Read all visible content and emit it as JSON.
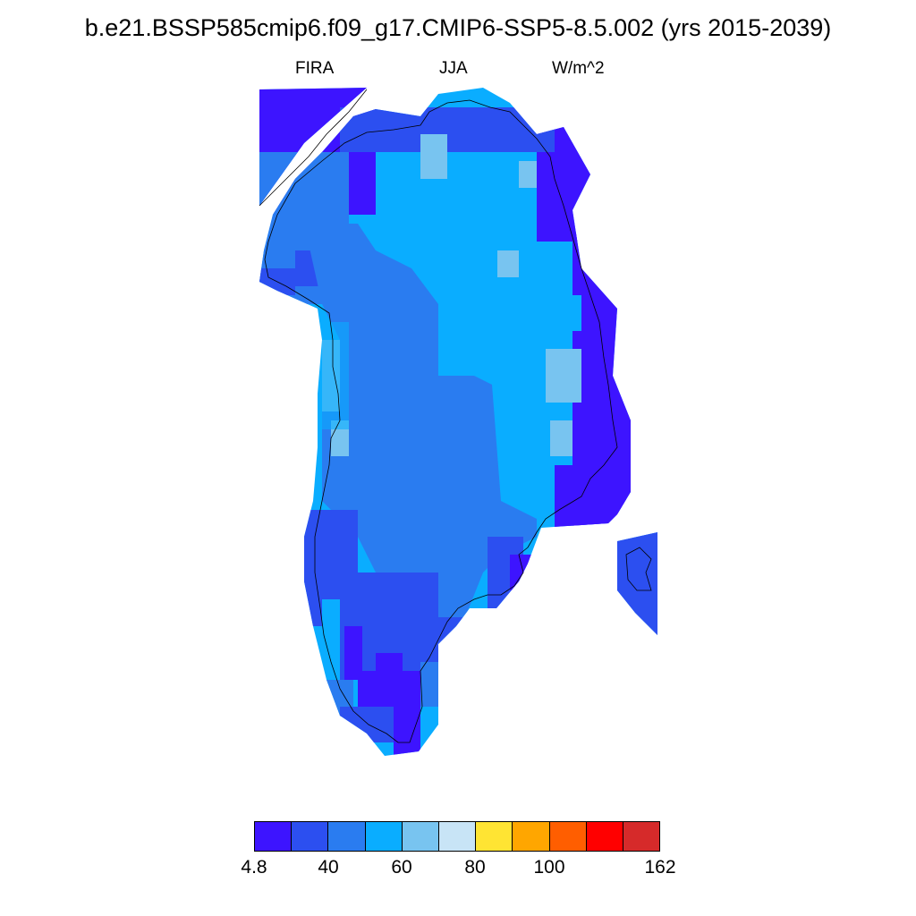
{
  "title": "b.e21.BSSP585cmip6.f09_g17.CMIP6-SSP5-8.5.002 (yrs 2015-2039)",
  "left_label": "FIRA",
  "center_label": "JJA",
  "right_label": "W/m^2",
  "colorbar": {
    "colors": [
      "#3d14ff",
      "#2c4ff0",
      "#2a7cf0",
      "#0aadff",
      "#78c4f0",
      "#c8e4f6",
      "#ffe433",
      "#ffa600",
      "#ff5e00",
      "#ff0000",
      "#d62a2a"
    ],
    "labels": [
      "4.8",
      "40",
      "60",
      "80",
      "100",
      "162"
    ]
  },
  "map": {
    "region": "Greenland",
    "field": "FIRA",
    "season": "JJA",
    "units": "W/m^2"
  }
}
